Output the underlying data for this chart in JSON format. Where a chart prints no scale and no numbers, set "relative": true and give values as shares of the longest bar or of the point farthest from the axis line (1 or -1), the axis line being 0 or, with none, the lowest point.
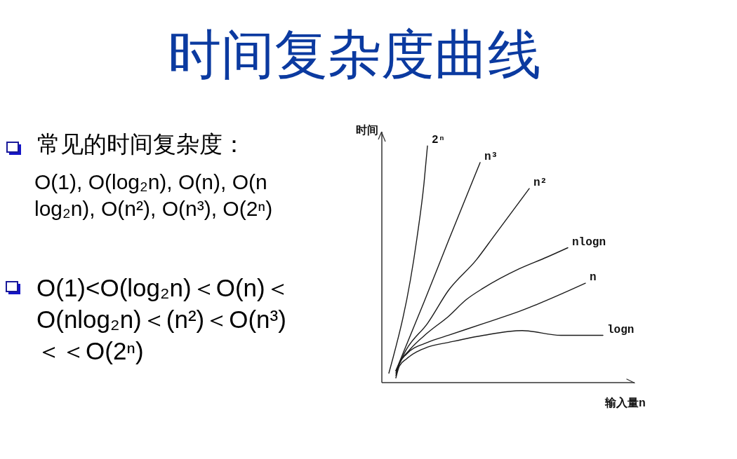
{
  "chart_data": {
    "type": "line",
    "title": "时间复杂度曲线",
    "xlabel": "输入量n",
    "ylabel": "时间",
    "relative": true,
    "marker": "none",
    "categories": [
      null,
      null,
      null,
      null,
      null,
      null,
      null,
      null,
      null,
      null,
      null,
      null,
      null,
      null,
      null,
      null,
      null,
      null,
      null,
      null,
      null,
      null,
      null,
      null,
      null,
      null,
      null,
      null,
      null,
      null,
      null,
      null,
      null,
      null,
      null,
      null,
      null,
      null,
      null,
      null,
      null,
      null,
      null,
      null,
      null,
      null,
      null,
      null,
      null,
      null,
      null,
      null,
      null,
      null,
      null,
      null,
      null,
      null,
      null,
      null,
      null,
      null,
      null,
      null,
      null,
      null,
      null,
      null,
      null,
      null,
      null,
      null,
      null
    ],
    "series": [
      {
        "name": "2ⁿ",
        "color": "#1a1a1a",
        "values": [
          null,
          null,
          0.04,
          null,
          null,
          null,
          null,
          null,
          null,
          null,
          0.61,
          null,
          0.84,
          1,
          null,
          null,
          null,
          null,
          null,
          null,
          null,
          null,
          null,
          null,
          null,
          null,
          null,
          null,
          null,
          null,
          null,
          null,
          null,
          null,
          null,
          null,
          null,
          null,
          null,
          null,
          null,
          null,
          null,
          null,
          null,
          null,
          null,
          null,
          null,
          null,
          null,
          null,
          null,
          null,
          null,
          null,
          null,
          null,
          null,
          null,
          null,
          null,
          null,
          null,
          null,
          null,
          null,
          null,
          null,
          null,
          null,
          null,
          null
        ]
      },
      {
        "name": "n³",
        "color": "#1a1a1a",
        "values": [
          null,
          null,
          null,
          null,
          0.05,
          null,
          null,
          null,
          null,
          null,
          null,
          null,
          0.34,
          null,
          null,
          null,
          null,
          null,
          null,
          0.6,
          null,
          null,
          null,
          null,
          null,
          null,
          null,
          null,
          0.93,
          null,
          null,
          null,
          null,
          null,
          null,
          null,
          null,
          null,
          null,
          null,
          null,
          null,
          null,
          null,
          null,
          null,
          null,
          null,
          null,
          null,
          null,
          null,
          null,
          null,
          null,
          null,
          null,
          null,
          null,
          null,
          null,
          null,
          null,
          null,
          null,
          null,
          null,
          null,
          null,
          null,
          null,
          null,
          null
        ]
      },
      {
        "name": "n²",
        "color": "#1a1a1a",
        "values": [
          null,
          null,
          null,
          null,
          0.05,
          null,
          null,
          0.14,
          null,
          null,
          null,
          null,
          null,
          0.25,
          null,
          null,
          null,
          null,
          null,
          0.39,
          null,
          null,
          null,
          null,
          null,
          null,
          null,
          0.52,
          null,
          null,
          null,
          null,
          0.62,
          null,
          null,
          null,
          null,
          null,
          null,
          null,
          null,
          null,
          0.82,
          null,
          null,
          null,
          null,
          null,
          null,
          null,
          null,
          null,
          null,
          null,
          null,
          null,
          null,
          null,
          null,
          null,
          null,
          null,
          null,
          null,
          null,
          null,
          null,
          null,
          null,
          null,
          null,
          null,
          null
        ]
      },
      {
        "name": "nlogn",
        "color": "#1a1a1a",
        "values": [
          null,
          null,
          null,
          null,
          0.04,
          0.08,
          null,
          null,
          0.14,
          null,
          null,
          null,
          null,
          0.21,
          null,
          null,
          null,
          null,
          null,
          0.28,
          null,
          null,
          null,
          null,
          0.35,
          null,
          null,
          null,
          null,
          0.4,
          null,
          null,
          null,
          null,
          null,
          null,
          null,
          null,
          null,
          0.48,
          null,
          null,
          null,
          null,
          null,
          null,
          null,
          0.53,
          null,
          null,
          null,
          null,
          null,
          0.57,
          null,
          null,
          null,
          null,
          null,
          null,
          null,
          null,
          null,
          null,
          null,
          null,
          null,
          null,
          null,
          null,
          null,
          null,
          null
        ]
      },
      {
        "name": "n",
        "color": "#1a1a1a",
        "values": [
          null,
          null,
          null,
          null,
          0.03,
          0.08,
          null,
          0.12,
          null,
          null,
          null,
          null,
          null,
          0.17,
          null,
          null,
          null,
          null,
          null,
          0.2,
          null,
          null,
          null,
          null,
          null,
          null,
          null,
          null,
          null,
          0.25,
          null,
          null,
          null,
          null,
          null,
          null,
          null,
          null,
          null,
          0.3,
          null,
          null,
          null,
          null,
          null,
          null,
          null,
          null,
          null,
          null,
          null,
          null,
          null,
          null,
          null,
          null,
          null,
          null,
          0.42,
          null,
          null,
          null,
          null,
          null,
          null,
          null,
          null,
          null,
          null,
          null,
          null,
          null,
          null
        ]
      },
      {
        "name": "logn",
        "color": "#1a1a1a",
        "values": [
          null,
          null,
          null,
          null,
          0.02,
          0.07,
          null,
          0.1,
          null,
          null,
          null,
          null,
          null,
          0.15,
          null,
          null,
          null,
          null,
          null,
          0.17,
          null,
          null,
          null,
          null,
          null,
          null,
          null,
          null,
          null,
          0.2,
          null,
          null,
          null,
          null,
          null,
          null,
          null,
          null,
          null,
          null,
          0.22,
          null,
          null,
          null,
          null,
          null,
          null,
          null,
          null,
          null,
          null,
          0.2,
          null,
          null,
          null,
          null,
          null,
          0.2,
          null,
          null,
          null,
          null,
          null,
          0.2,
          null,
          null,
          null,
          null,
          null,
          null,
          null,
          null,
          null
        ]
      }
    ],
    "annotations": [
      "常见的时间复杂度：",
      "O(1), O(log₂n), O(n), O(n log₂n), O(n²), O(n³), O(2ⁿ)",
      "O(1)<O(log₂n)＜O(n)＜O(nlog₂n)＜(n²)＜O(n³)＜＜O(2ⁿ)"
    ]
  }
}
